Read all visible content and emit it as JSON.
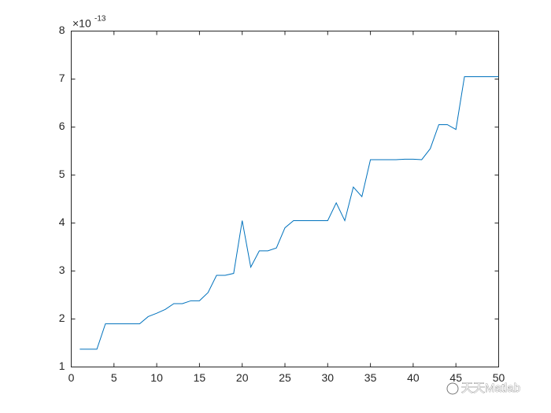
{
  "chart_data": {
    "type": "line",
    "x": [
      1,
      2,
      3,
      4,
      5,
      6,
      7,
      8,
      9,
      10,
      11,
      12,
      13,
      14,
      15,
      16,
      17,
      18,
      19,
      20,
      21,
      22,
      23,
      24,
      25,
      26,
      27,
      28,
      29,
      30,
      31,
      32,
      33,
      34,
      35,
      36,
      37,
      38,
      39,
      40,
      41,
      42,
      43,
      44,
      45,
      46,
      47,
      48,
      49,
      50
    ],
    "values": [
      1.37,
      1.37,
      1.37,
      1.9,
      1.9,
      1.9,
      1.9,
      1.9,
      2.05,
      2.12,
      2.2,
      2.32,
      2.32,
      2.38,
      2.38,
      2.55,
      2.91,
      2.91,
      2.95,
      4.05,
      3.08,
      3.42,
      3.42,
      3.48,
      3.9,
      4.05,
      4.05,
      4.05,
      4.05,
      4.05,
      4.42,
      4.05,
      4.75,
      4.55,
      5.32,
      5.32,
      5.32,
      5.32,
      5.33,
      5.33,
      5.32,
      5.55,
      6.05,
      6.05,
      5.95,
      7.05,
      7.05,
      7.05,
      7.05,
      7.05
    ],
    "color": "#0072bd",
    "xlim": [
      0,
      50
    ],
    "xticks": [
      0,
      5,
      10,
      15,
      20,
      25,
      30,
      35,
      40,
      45,
      50
    ],
    "ylim": [
      1,
      8
    ],
    "yticks": [
      1,
      2,
      3,
      4,
      5,
      6,
      7,
      8
    ],
    "y_multiplier": "×10",
    "y_exponent": "-13",
    "watermark": "天天Matlab"
  }
}
